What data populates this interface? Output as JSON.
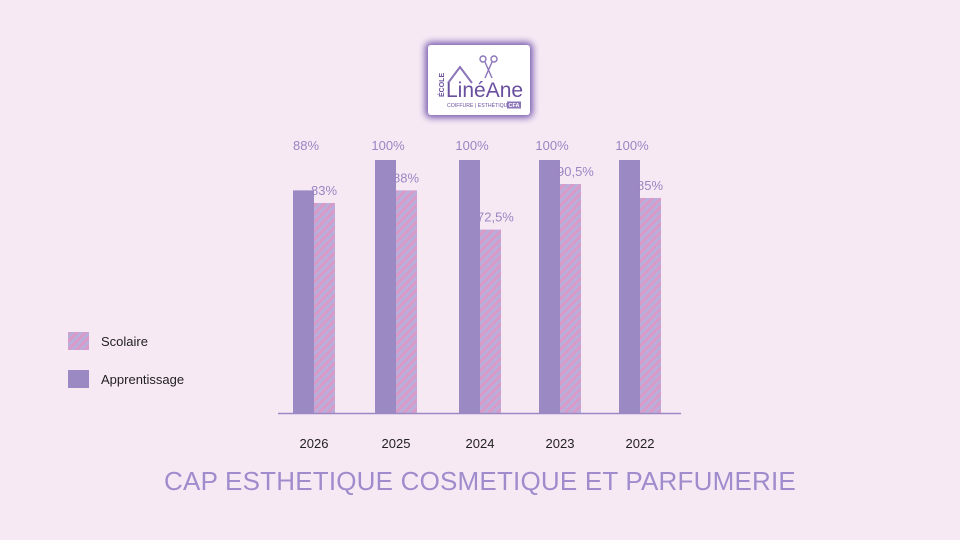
{
  "logo": {
    "vertical_text": "ÉCOLE",
    "brand": "LinéAne",
    "tagline": "COIFFURE | ESTHÉTIQUE",
    "badge": "CFA"
  },
  "chart_data": {
    "type": "bar",
    "title": "CAP ESTHETIQUE COSMETIQUE ET PARFUMERIE",
    "categories": [
      "2026",
      "2025",
      "2024",
      "2023",
      "2022"
    ],
    "series": [
      {
        "name": "Apprentissage",
        "values": [
          88,
          100,
          100,
          100,
          100
        ],
        "labels": [
          "88%",
          "100%",
          "100%",
          "100%",
          "100%"
        ],
        "color": "#9b89c4",
        "pattern": "solid"
      },
      {
        "name": "Scolaire",
        "values": [
          83,
          88,
          72.5,
          90.5,
          85
        ],
        "labels": [
          "83%",
          "88%",
          "72,5%",
          "90,5%",
          "85%"
        ],
        "color": "#c89ac8",
        "pattern": "diagonal-stripes"
      }
    ],
    "legend_order": [
      "Scolaire",
      "Apprentissage"
    ],
    "ylim": [
      0,
      100
    ],
    "grid": false,
    "legend_position": "left",
    "label_color": "#9a86c2",
    "axis_color": "#9b89c4"
  }
}
